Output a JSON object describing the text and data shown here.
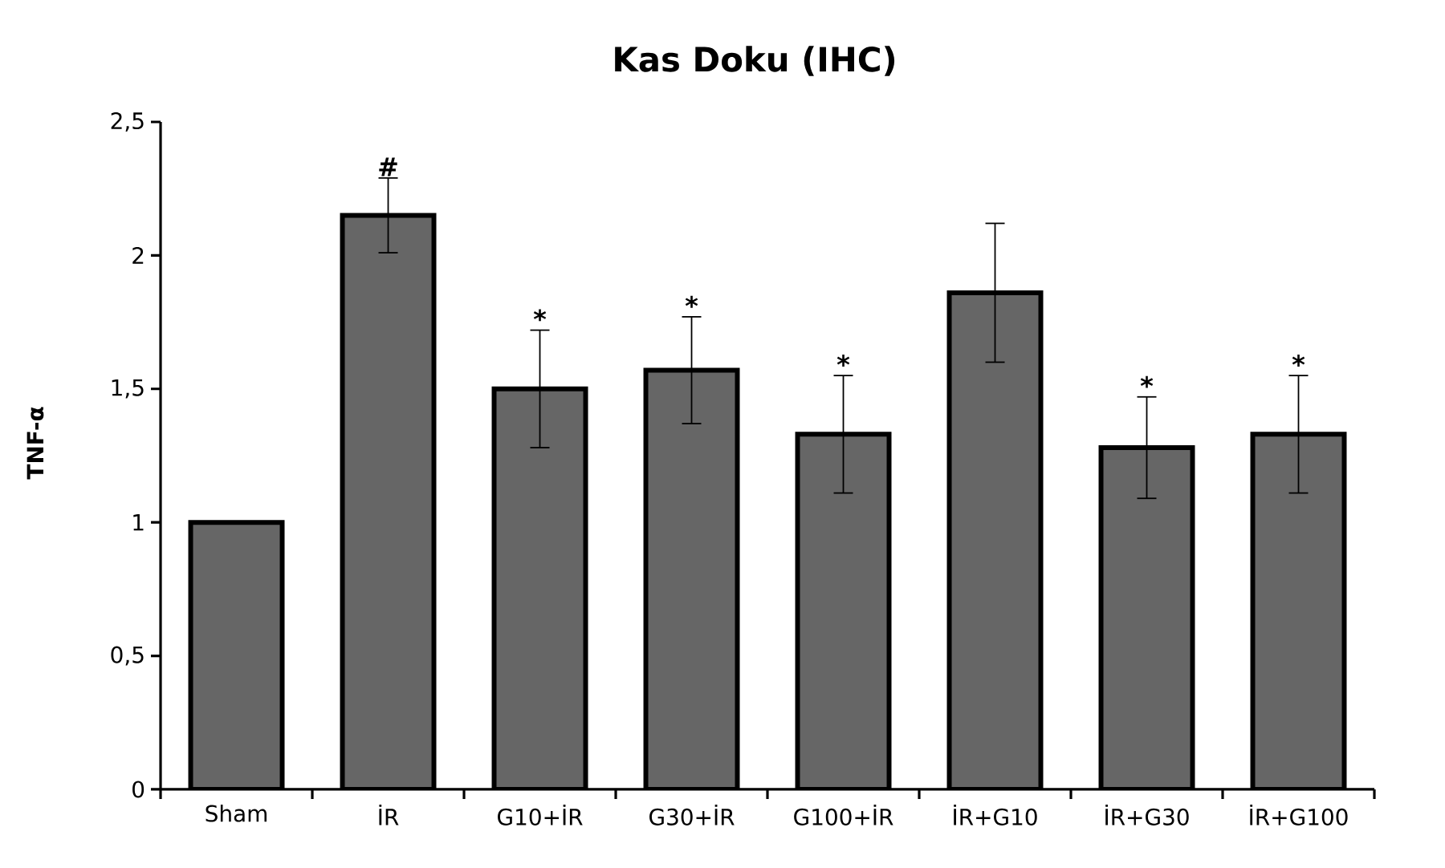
{
  "chart_data": {
    "type": "bar",
    "title": "Kas Doku (IHC)",
    "ylabel": "TNF-α",
    "categories": [
      "Sham",
      "İR",
      "G10+İR",
      "G30+İR",
      "G100+İR",
      "İR+G10",
      "İR+G30",
      "İR+G100"
    ],
    "values": [
      1.0,
      2.15,
      1.5,
      1.57,
      1.33,
      1.86,
      1.28,
      1.33
    ],
    "errors": [
      null,
      0.14,
      0.22,
      0.2,
      0.22,
      0.26,
      0.19,
      0.22
    ],
    "color": "#666666",
    "ylim": [
      0,
      2.5
    ],
    "yticks": [
      0,
      {
        "value": 0.5,
        "label": "0,5"
      },
      1,
      {
        "value": 1.5,
        "label": "1,5"
      },
      2,
      {
        "value": 2.5,
        "label": "2,5"
      }
    ],
    "annotations": [
      {
        "text": "#",
        "x": "İR",
        "y": 2.29
      },
      {
        "text": "*",
        "x": "G10+İR",
        "y": 1.72
      },
      {
        "text": "*",
        "x": "G30+İR",
        "y": 1.77
      },
      {
        "text": "*",
        "x": "G100+İR",
        "y": 1.55
      },
      {
        "text": "*",
        "x": "İR+G30",
        "y": 1.47
      },
      {
        "text": "*",
        "x": "İR+G100",
        "y": 1.55
      }
    ],
    "grid": false
  }
}
